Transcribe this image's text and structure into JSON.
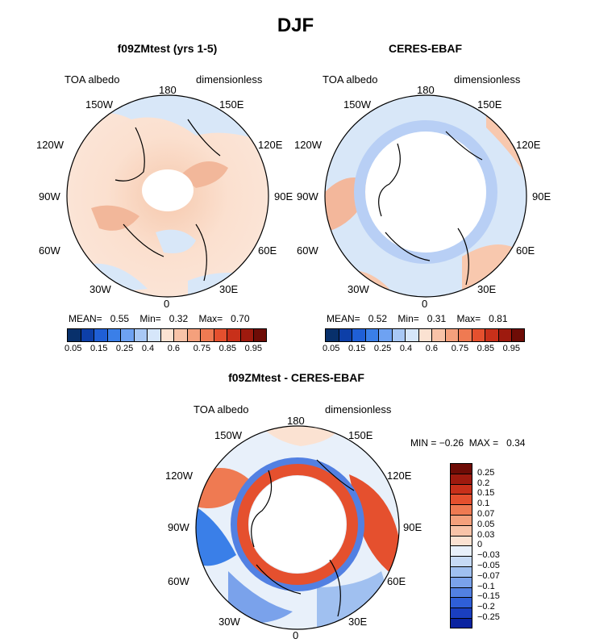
{
  "figure": {
    "title": "DJF",
    "panels": [
      {
        "title": "f09ZMtest (yrs 1-5)",
        "left_label": "TOA albedo",
        "right_label": "dimensionless",
        "stats": {
          "mean_label": "MEAN=",
          "mean": "0.55",
          "min_label": "Min=",
          "min": "0.32",
          "max_label": "Max=",
          "max": "0.70"
        }
      },
      {
        "title": "CERES-EBAF",
        "left_label": "TOA albedo",
        "right_label": "dimensionless",
        "stats": {
          "mean_label": "MEAN=",
          "mean": "0.52",
          "min_label": "Min=",
          "min": "0.31",
          "max_label": "Max=",
          "max": "0.81"
        }
      },
      {
        "title": "f09ZMtest - CERES-EBAF",
        "left_label": "TOA albedo",
        "right_label": "dimensionless",
        "stats": {
          "min_label": "MIN =",
          "min": "−0.26",
          "max_label": "MAX =",
          "max": "0.34"
        }
      }
    ],
    "longitude_labels": {
      "top": "180",
      "tl": "150W",
      "tr": "150E",
      "ul": "120W",
      "ur": "120E",
      "l": "90W",
      "r": "90E",
      "ll": "60W",
      "lr": "60E",
      "bl": "30W",
      "br": "30E",
      "bottom": "0"
    },
    "colorbar_abs": {
      "colors": [
        "#08306b",
        "#0d3fa8",
        "#1f5fd6",
        "#3a7fe8",
        "#6ea2f2",
        "#a8c8f5",
        "#d6e6fa",
        "#fbe2d2",
        "#f8c3a8",
        "#f4a07c",
        "#ef7a52",
        "#e5502e",
        "#c8301a",
        "#9e1a0e",
        "#6e0c06"
      ],
      "tick_labels": [
        "0.05",
        "0.15",
        "0.25",
        "0.4",
        "0.6",
        "0.75",
        "0.85",
        "0.95"
      ]
    },
    "colorbar_diff": {
      "colors": [
        "#6e0c06",
        "#9e1a0e",
        "#c8301a",
        "#e5502e",
        "#ef7a52",
        "#f4a07c",
        "#f8c3a8",
        "#fbe2d2",
        "#e8f0fa",
        "#c6daf5",
        "#a0c0f0",
        "#7aa2eb",
        "#5280e2",
        "#2f5fd8",
        "#1a3fc0",
        "#0a23a0"
      ],
      "tick_labels": [
        "0.25",
        "0.2",
        "0.15",
        "0.1",
        "0.07",
        "0.05",
        "0.03",
        "0",
        "−0.03",
        "−0.05",
        "−0.07",
        "−0.1",
        "−0.15",
        "−0.2",
        "−0.25"
      ]
    }
  }
}
